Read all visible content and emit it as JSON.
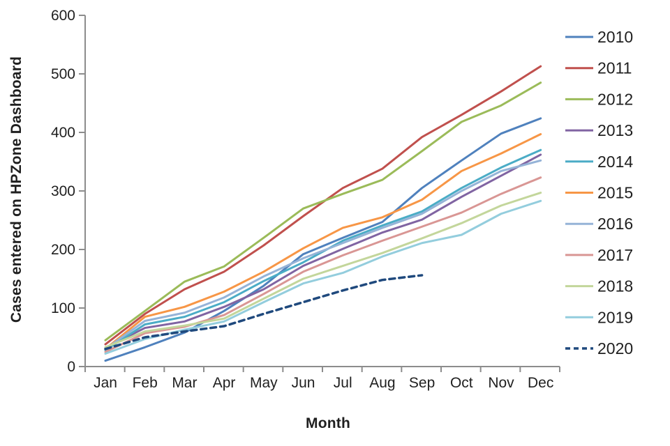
{
  "chart_data": {
    "type": "line",
    "title": "",
    "xlabel": "Month",
    "ylabel": "Cases entered on HPZone Dashboard",
    "categories": [
      "Jan",
      "Feb",
      "Mar",
      "Apr",
      "May",
      "Jun",
      "Jul",
      "Aug",
      "Sep",
      "Oct",
      "Nov",
      "Dec"
    ],
    "ylim": [
      0,
      600
    ],
    "yticks": [
      0,
      100,
      200,
      300,
      400,
      500,
      600
    ],
    "grid": false,
    "legend_position": "right",
    "axis_color": "#8C8C8C",
    "text_color": "#1f1f1f",
    "series": [
      {
        "name": "2010",
        "color": "#4F81BD",
        "dash": "solid",
        "values": [
          10,
          33,
          58,
          95,
          138,
          192,
          220,
          247,
          305,
          352,
          398,
          424
        ]
      },
      {
        "name": "2011",
        "color": "#C0504D",
        "dash": "solid",
        "values": [
          38,
          90,
          132,
          162,
          207,
          257,
          305,
          338,
          392,
          430,
          470,
          513
        ]
      },
      {
        "name": "2012",
        "color": "#9BBB59",
        "dash": "solid",
        "values": [
          45,
          95,
          145,
          171,
          220,
          270,
          295,
          319,
          368,
          418,
          446,
          485
        ]
      },
      {
        "name": "2013",
        "color": "#8064A2",
        "dash": "solid",
        "values": [
          32,
          66,
          77,
          102,
          132,
          172,
          201,
          229,
          251,
          290,
          326,
          362
        ]
      },
      {
        "name": "2014",
        "color": "#4BACC6",
        "dash": "solid",
        "values": [
          28,
          72,
          85,
          110,
          146,
          178,
          215,
          241,
          265,
          305,
          340,
          370
        ]
      },
      {
        "name": "2015",
        "color": "#F79646",
        "dash": "solid",
        "values": [
          30,
          85,
          102,
          128,
          162,
          202,
          237,
          255,
          285,
          334,
          364,
          397
        ]
      },
      {
        "name": "2016",
        "color": "#95B3D7",
        "dash": "solid",
        "values": [
          30,
          78,
          92,
          118,
          154,
          185,
          211,
          237,
          261,
          300,
          334,
          352
        ]
      },
      {
        "name": "2017",
        "color": "#D99694",
        "dash": "solid",
        "values": [
          25,
          57,
          68,
          88,
          124,
          162,
          190,
          215,
          239,
          263,
          295,
          323
        ]
      },
      {
        "name": "2018",
        "color": "#C3D69B",
        "dash": "solid",
        "values": [
          33,
          60,
          70,
          82,
          116,
          150,
          172,
          194,
          219,
          245,
          275,
          297
        ]
      },
      {
        "name": "2019",
        "color": "#93CDDD",
        "dash": "solid",
        "values": [
          22,
          47,
          63,
          77,
          110,
          142,
          160,
          188,
          211,
          225,
          261,
          283
        ]
      },
      {
        "name": "2020",
        "color": "#1F497D",
        "dash": "dashed",
        "values": [
          30,
          50,
          60,
          69,
          90,
          110,
          130,
          148,
          156,
          null,
          null,
          null
        ]
      }
    ]
  }
}
